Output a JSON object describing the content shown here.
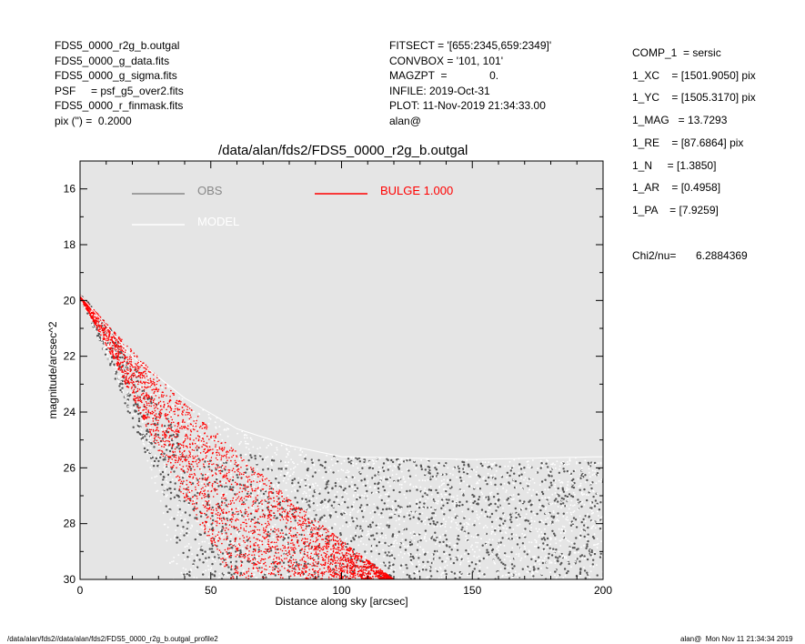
{
  "header_left": [
    "FDS5_0000_r2g_b.outgal",
    "FDS5_0000_g_data.fits",
    "FDS5_0000_g_sigma.fits",
    "PSF     = psf_g5_over2.fits",
    "FDS5_0000_r_finmask.fits",
    "pix (\") =  0.2000"
  ],
  "header_mid": [
    "FITSECT = '[655:2345,659:2349]'",
    "CONVBOX = '101, 101'",
    "MAGZPT  =              0.",
    "INFILE: 2019-Oct-31",
    "PLOT: 11-Nov-2019 21:34:33.00",
    "alan@"
  ],
  "params": [
    "COMP_1  = sersic",
    "1_XC    = [1501.9050] pix",
    "1_YC    = [1505.3170] pix",
    "1_MAG   = 13.7293",
    "1_RE    = [87.6864] pix",
    "1_N     = [1.3850]",
    "1_AR    = [0.4958]",
    "1_PA    = [7.9259]"
  ],
  "chi2_label": "Chi2/nu=",
  "chi2_value": "6.2884369",
  "footer_left": "/data/alan/fds2//data/alan/fds2/FDS5_0000_r2g_b.outgal_profile2",
  "footer_right": "alan@  Mon Nov 11 21:34:34 2019",
  "chart_data": {
    "type": "scatter",
    "title": "/data/alan/fds2/FDS5_0000_r2g_b.outgal",
    "xlabel": "Distance along sky [arcsec]",
    "ylabel": "magnitude/arcsec^2",
    "xlim": [
      0,
      200
    ],
    "ylim": [
      30,
      15
    ],
    "y_inverted": true,
    "xticks": [
      0,
      50,
      100,
      150,
      200
    ],
    "yticks": [
      16,
      18,
      20,
      22,
      24,
      26,
      28,
      30
    ],
    "background": "#e5e5e5",
    "legend": [
      {
        "name": "OBS",
        "color": "#888888"
      },
      {
        "name": "BULGE  1.000",
        "color": "#ff0000"
      },
      {
        "name": "MODEL",
        "color": "#ffffff"
      }
    ],
    "series": [
      {
        "name": "OBS",
        "color": "#555555",
        "upper_edge": [
          [
            0,
            19.8
          ],
          [
            5,
            20.2
          ],
          [
            10,
            20.8
          ],
          [
            15,
            21.5
          ],
          [
            20,
            22.3
          ],
          [
            30,
            23.8
          ],
          [
            40,
            25.0
          ],
          [
            50,
            25.5
          ],
          [
            100,
            25.6
          ],
          [
            150,
            25.8
          ],
          [
            200,
            25.8
          ]
        ],
        "lower_edge": [
          [
            0,
            20.0
          ],
          [
            10,
            22.0
          ],
          [
            20,
            24.5
          ],
          [
            30,
            26.5
          ],
          [
            38,
            29
          ],
          [
            40,
            30
          ],
          [
            200,
            30
          ]
        ]
      },
      {
        "name": "MODEL",
        "color": "#ffffff",
        "upper_edge": [
          [
            0,
            19.8
          ],
          [
            20,
            22.0
          ],
          [
            40,
            23.5
          ],
          [
            60,
            24.6
          ],
          [
            80,
            25.2
          ],
          [
            100,
            25.6
          ],
          [
            150,
            25.7
          ],
          [
            200,
            25.6
          ]
        ],
        "lower_edge": [
          [
            0,
            19.9
          ],
          [
            15,
            23.0
          ],
          [
            25,
            25.5
          ],
          [
            32,
            28
          ],
          [
            35,
            30
          ],
          [
            200,
            30
          ]
        ]
      },
      {
        "name": "BULGE  1.000",
        "color": "#ff0000",
        "upper_edge": [
          [
            0,
            19.8
          ],
          [
            10,
            20.8
          ],
          [
            20,
            21.8
          ],
          [
            40,
            23.7
          ],
          [
            60,
            25.4
          ],
          [
            80,
            27.1
          ],
          [
            100,
            28.6
          ],
          [
            120,
            30
          ]
        ],
        "lower_edge": [
          [
            0,
            19.9
          ],
          [
            10,
            21.6
          ],
          [
            20,
            23.5
          ],
          [
            30,
            25.4
          ],
          [
            40,
            27.1
          ],
          [
            50,
            28.7
          ],
          [
            58,
            30
          ]
        ]
      }
    ]
  }
}
